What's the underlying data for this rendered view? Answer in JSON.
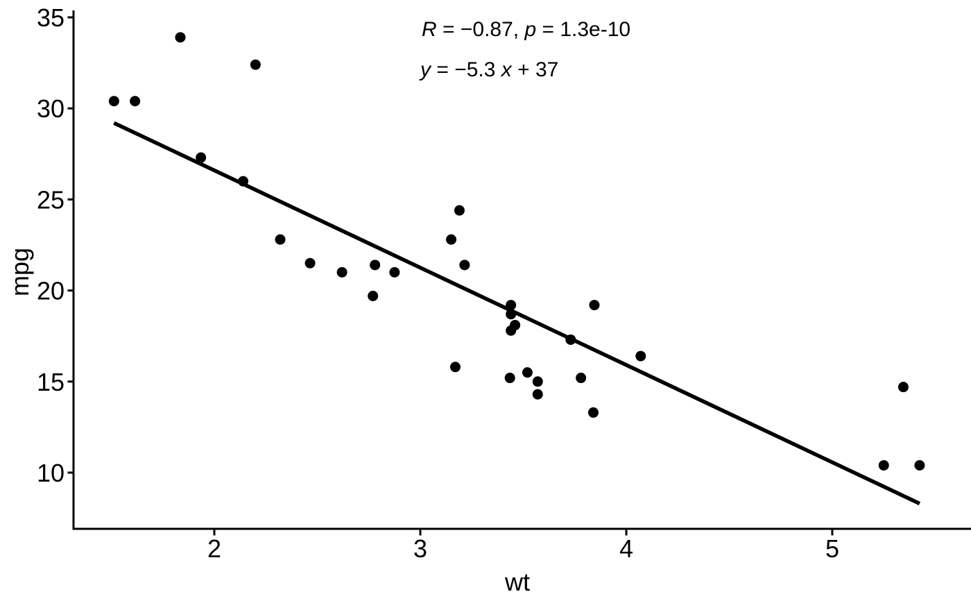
{
  "figure": {
    "background": "#ffffff",
    "text_color": "#000000"
  },
  "chart_data": {
    "type": "scatter",
    "title": "",
    "xlabel": "wt",
    "ylabel": "mpg",
    "x_ticks": [
      2,
      3,
      4,
      5
    ],
    "y_ticks": [
      10,
      15,
      20,
      25,
      30,
      35
    ],
    "xlim": [
      1.32,
      5.67
    ],
    "ylim": [
      6.9,
      35.4
    ],
    "grid": "off",
    "legend": "none",
    "point_color": "#000000",
    "line_color": "#000000",
    "annotation": {
      "line1_text": "R = −0.87, p = 1.3e-10",
      "line2_text": "y = −5.3 x + 37",
      "line1_parts": [
        {
          "text": "R",
          "italic": true
        },
        {
          "text": " = −0.87, ",
          "italic": false
        },
        {
          "text": "p",
          "italic": true
        },
        {
          "text": " = 1.3e-10",
          "italic": false
        }
      ],
      "line2_parts": [
        {
          "text": "y",
          "italic": true
        },
        {
          "text": " = −5.3 ",
          "italic": false
        },
        {
          "text": "x",
          "italic": true
        },
        {
          "text": " + 37",
          "italic": false
        }
      ]
    },
    "regression": {
      "slope": -5.344,
      "intercept": 37.285,
      "x_start": 1.513,
      "x_end": 5.424
    },
    "series": [
      {
        "name": "points",
        "points": [
          [
            2.62,
            21.0
          ],
          [
            2.875,
            21.0
          ],
          [
            2.32,
            22.8
          ],
          [
            3.215,
            21.4
          ],
          [
            3.44,
            18.7
          ],
          [
            3.46,
            18.1
          ],
          [
            3.57,
            14.3
          ],
          [
            3.19,
            24.4
          ],
          [
            3.15,
            22.8
          ],
          [
            3.44,
            19.2
          ],
          [
            3.44,
            17.8
          ],
          [
            4.07,
            16.4
          ],
          [
            3.73,
            17.3
          ],
          [
            3.78,
            15.2
          ],
          [
            5.25,
            10.4
          ],
          [
            5.424,
            10.4
          ],
          [
            5.345,
            14.7
          ],
          [
            2.2,
            32.4
          ],
          [
            1.615,
            30.4
          ],
          [
            1.835,
            33.9
          ],
          [
            2.465,
            21.5
          ],
          [
            3.52,
            15.5
          ],
          [
            3.435,
            15.2
          ],
          [
            3.84,
            13.3
          ],
          [
            3.845,
            19.2
          ],
          [
            1.935,
            27.3
          ],
          [
            2.14,
            26.0
          ],
          [
            1.513,
            30.4
          ],
          [
            3.17,
            15.8
          ],
          [
            2.77,
            19.7
          ],
          [
            3.57,
            15.0
          ],
          [
            2.78,
            21.4
          ]
        ]
      }
    ]
  }
}
